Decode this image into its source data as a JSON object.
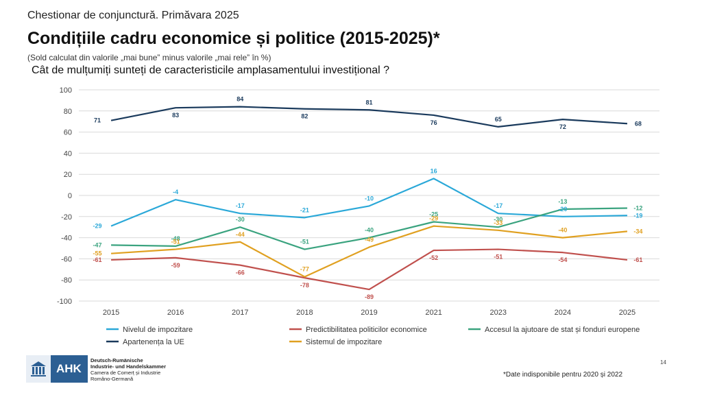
{
  "header": {
    "subhead": "Chestionar de conjunctură. Primăvara 2025",
    "title": "Condițiile cadru economice și politice (2015-2025)*",
    "note": "(Sold calculat din valorile „mai bune” minus valorile „mai rele” în %)",
    "question": "Cât de mulțumiți sunteți de caracteristicile amplasamentului investițional ?"
  },
  "chart_data": {
    "type": "line",
    "categories": [
      "2015",
      "2016",
      "2017",
      "2018",
      "2019",
      "2021",
      "2023",
      "2024",
      "2025"
    ],
    "ylim": [
      -100,
      100
    ],
    "yticks": [
      100,
      80,
      60,
      40,
      20,
      0,
      -20,
      -40,
      -60,
      -80,
      -100
    ],
    "grid": true,
    "legend_position": "bottom",
    "series": [
      {
        "name": "Nivelul de impozitare",
        "color": "#2aa8d8",
        "values": [
          -29,
          -4,
          -17,
          -21,
          -10,
          16,
          -17,
          -20,
          -19
        ]
      },
      {
        "name": "Predictibilitatea politicilor economice",
        "color": "#c0504d",
        "values": [
          -61,
          -59,
          -66,
          -78,
          -89,
          -52,
          -51,
          -54,
          -61
        ]
      },
      {
        "name": "Accesul la ajutoare de stat și fonduri europene",
        "color": "#3aa37f",
        "values": [
          -47,
          -48,
          -30,
          -51,
          -40,
          -25,
          -30,
          -13,
          -12
        ]
      },
      {
        "name": "Apartenența la UE",
        "color": "#1a3a5c",
        "values": [
          71,
          83,
          84,
          82,
          81,
          76,
          65,
          72,
          68
        ]
      },
      {
        "name": "Sistemul de impozitare",
        "color": "#e0a020",
        "values": [
          -55,
          -51,
          -44,
          -77,
          -49,
          -29,
          -33,
          -40,
          -34
        ]
      }
    ]
  },
  "footer": {
    "logo_text": "AHK",
    "org_lines": [
      "Deutsch-Rumänische",
      "Industrie- und Handelskammer",
      "Camera de Comerț și Industrie",
      "Româno-Germană"
    ],
    "footnote": "*Date indisponibile pentru 2020 și 2022",
    "page_number": "14"
  }
}
